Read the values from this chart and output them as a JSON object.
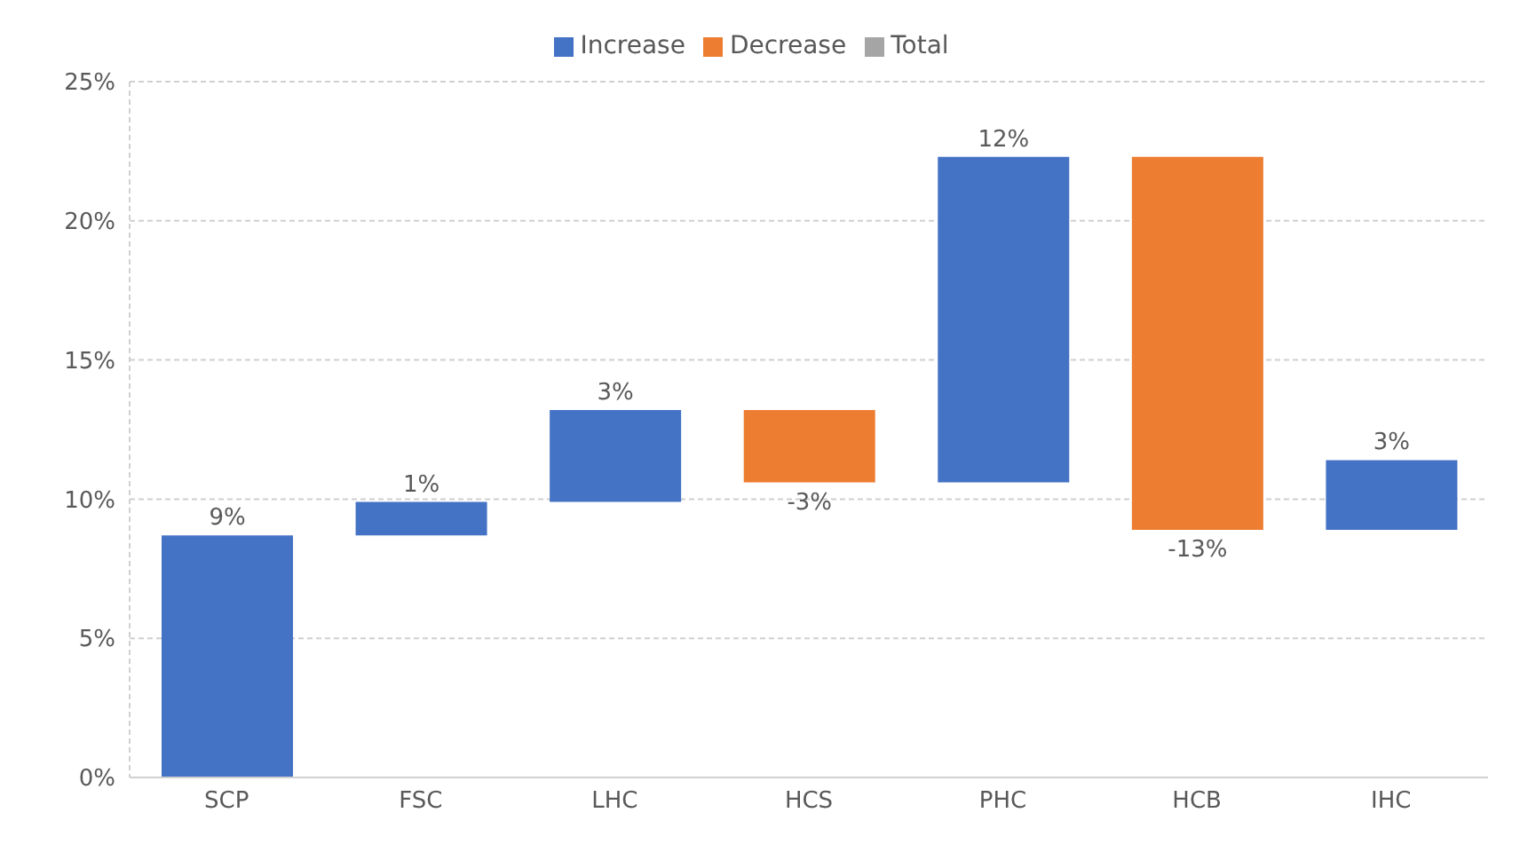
{
  "chart_data": {
    "type": "bar",
    "categories": [
      "SCP",
      "FSC",
      "LHC",
      "HCS",
      "PHC",
      "HCB",
      "IHC"
    ],
    "series": [
      {
        "name": "Increase",
        "color": "#4472c4",
        "values": [
          8.7,
          1.2,
          3.3,
          null,
          11.7,
          null,
          2.5
        ],
        "base": [
          0,
          8.7,
          9.9,
          null,
          10.6,
          null,
          8.9
        ],
        "value_labels": [
          "9%",
          "1%",
          "3%",
          null,
          "12%",
          null,
          "3%"
        ]
      },
      {
        "name": "Decrease",
        "color": "#ed7d31",
        "values": [
          null,
          null,
          null,
          -2.6,
          null,
          -13.4,
          null
        ],
        "base": [
          null,
          null,
          null,
          13.2,
          null,
          22.3,
          null
        ],
        "value_labels": [
          null,
          null,
          null,
          "-3%",
          null,
          "-13%",
          null
        ]
      },
      {
        "name": "Total",
        "color": "#a5a5a5",
        "values": [
          null,
          null,
          null,
          null,
          null,
          null,
          null
        ]
      }
    ],
    "ylim": [
      0,
      25
    ],
    "yticks": [
      {
        "value": 0,
        "label": "0%"
      },
      {
        "value": 5,
        "label": "5%"
      },
      {
        "value": 10,
        "label": "10%"
      },
      {
        "value": 15,
        "label": "15%"
      },
      {
        "value": 20,
        "label": "20%"
      },
      {
        "value": 25,
        "label": "25%"
      }
    ],
    "grid": "y",
    "legend": "top"
  }
}
